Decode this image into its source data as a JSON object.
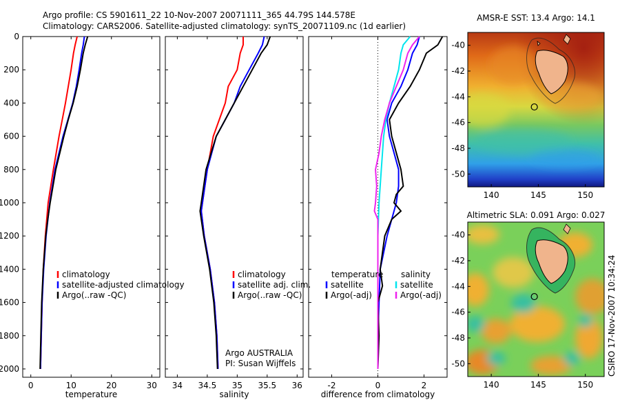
{
  "header": {
    "title_line1": "Argo profile: CS 5901611_22 10-Nov-2007 20071111_365 44.79S 144.578E",
    "title_line2": "Climatology: CARS2006. Satellite-adjusted climatology: synTS_20071109.nc (1d earlier)"
  },
  "credits": {
    "argo_line1": "Argo AUSTRALIA",
    "argo_line2": "PI: Susan Wijffels",
    "csiro_stamp": "CSIRO 17-Nov-2007 10:34:24"
  },
  "colors": {
    "climatology": "#ff0000",
    "satellite": "#0000ff",
    "argo": "#000000",
    "salinity_satellite": "#00e5ee",
    "salinity_argo": "#ee22ee"
  },
  "chart_data": [
    {
      "type": "line",
      "id": "temperature",
      "xlabel": "temperature",
      "ylabel": "",
      "xlim": [
        -2,
        32
      ],
      "ylim": [
        2050,
        0
      ],
      "xticks": [
        0,
        10,
        20,
        30
      ],
      "yticks": [
        0,
        200,
        400,
        600,
        800,
        1000,
        1200,
        1400,
        1600,
        1800,
        2000
      ],
      "legend": [
        "climatology",
        "satellite-adjusted climatology",
        "Argo(..raw -QC)"
      ],
      "series": [
        {
          "name": "climatology",
          "depth": [
            0,
            50,
            100,
            200,
            300,
            400,
            500,
            600,
            800,
            1000,
            1200,
            1400,
            1600,
            1800,
            2000
          ],
          "values": [
            11.5,
            11.0,
            10.6,
            10.0,
            9.3,
            8.6,
            7.8,
            7.0,
            5.6,
            4.3,
            3.6,
            3.1,
            2.8,
            2.6,
            2.4
          ]
        },
        {
          "name": "satellite-adjusted climatology",
          "depth": [
            0,
            50,
            100,
            200,
            300,
            400,
            500,
            600,
            800,
            1000,
            1200,
            1400,
            1600,
            1800,
            2000
          ],
          "values": [
            13.3,
            13.0,
            12.6,
            12.0,
            11.3,
            10.4,
            9.2,
            8.0,
            6.0,
            4.7,
            3.8,
            3.2,
            2.8,
            2.6,
            2.4
          ]
        },
        {
          "name": "Argo(..raw -QC)",
          "depth": [
            0,
            50,
            100,
            200,
            300,
            400,
            500,
            600,
            800,
            1000,
            1100,
            1200,
            1400,
            1600,
            1800,
            2000
          ],
          "values": [
            14.1,
            13.5,
            13.0,
            12.3,
            11.5,
            10.5,
            9.3,
            8.2,
            6.2,
            4.8,
            4.2,
            3.7,
            3.1,
            2.7,
            2.5,
            2.3
          ]
        }
      ]
    },
    {
      "type": "line",
      "id": "salinity",
      "xlabel": "salinity",
      "xlim": [
        33.8,
        36.1
      ],
      "ylim": [
        2050,
        0
      ],
      "xticks": [
        34,
        34.5,
        35,
        35.5,
        36
      ],
      "legend": [
        "climatology",
        "satellite adj. clim.",
        "Argo(..raw -QC)"
      ],
      "series": [
        {
          "name": "climatology",
          "depth": [
            0,
            50,
            100,
            200,
            300,
            400,
            500,
            600,
            800,
            1000,
            1050,
            1200,
            1400,
            1600,
            1800,
            2000
          ],
          "values": [
            35.1,
            35.1,
            35.05,
            35.0,
            34.85,
            34.8,
            34.7,
            34.6,
            34.5,
            34.42,
            34.4,
            34.45,
            34.55,
            34.62,
            34.66,
            34.68
          ]
        },
        {
          "name": "satellite adj. clim.",
          "depth": [
            0,
            50,
            100,
            200,
            300,
            400,
            500,
            600,
            800,
            1000,
            1050,
            1200,
            1400,
            1600,
            1800,
            2000
          ],
          "values": [
            35.45,
            35.42,
            35.35,
            35.2,
            35.05,
            34.95,
            34.8,
            34.65,
            34.5,
            34.42,
            34.4,
            34.45,
            34.55,
            34.62,
            34.66,
            34.68
          ]
        },
        {
          "name": "Argo(..raw -QC)",
          "depth": [
            0,
            50,
            100,
            200,
            300,
            400,
            500,
            600,
            800,
            1000,
            1050,
            1200,
            1400,
            1600,
            1800,
            2000
          ],
          "values": [
            35.55,
            35.5,
            35.4,
            35.25,
            35.1,
            34.95,
            34.8,
            34.65,
            34.48,
            34.4,
            34.38,
            34.44,
            34.54,
            34.61,
            34.65,
            34.67
          ]
        }
      ]
    },
    {
      "type": "line",
      "id": "difference",
      "xlabel": "difference from climatology",
      "xlim": [
        -3,
        3
      ],
      "ylim": [
        2050,
        0
      ],
      "xticks": [
        -2,
        0,
        2
      ],
      "legend_temperature": {
        "title": "temperature",
        "entries": [
          "satellite",
          "Argo(-adj)"
        ]
      },
      "legend_salinity": {
        "title": "salinity",
        "entries": [
          "satellite",
          "Argo(-adj)"
        ]
      },
      "series": [
        {
          "name": "temperature satellite",
          "depth": [
            0,
            50,
            100,
            200,
            300,
            400,
            500,
            600,
            700,
            800,
            900,
            1000,
            1100,
            1200,
            1400,
            1600,
            1800,
            2000
          ],
          "values": [
            1.8,
            1.7,
            1.5,
            1.3,
            1.0,
            0.6,
            0.4,
            0.5,
            0.7,
            0.9,
            0.9,
            0.8,
            0.6,
            0.4,
            0.1,
            0.05,
            0.0,
            0.0
          ]
        },
        {
          "name": "temperature Argo(-adj)",
          "depth": [
            0,
            50,
            100,
            200,
            300,
            400,
            500,
            600,
            700,
            800,
            900,
            950,
            1000,
            1050,
            1100,
            1200,
            1400,
            1500,
            1600,
            1800,
            2000
          ],
          "values": [
            2.8,
            2.6,
            2.1,
            1.8,
            1.4,
            0.9,
            0.5,
            0.6,
            0.8,
            1.0,
            1.1,
            0.8,
            0.7,
            1.0,
            0.6,
            0.3,
            0.1,
            0.2,
            0.0,
            0.05,
            0.0
          ]
        },
        {
          "name": "salinity satellite",
          "depth": [
            0,
            50,
            100,
            200,
            300,
            400,
            500,
            600,
            800,
            1000,
            1200,
            1400,
            1600,
            1800,
            2000
          ],
          "values": [
            1.4,
            1.1,
            1.0,
            0.9,
            0.7,
            0.5,
            0.35,
            0.25,
            0.15,
            0.05,
            0.0,
            0.0,
            0.0,
            0.0,
            0.0
          ]
        },
        {
          "name": "salinity Argo(-adj)",
          "depth": [
            0,
            50,
            100,
            200,
            300,
            400,
            500,
            600,
            700,
            800,
            900,
            1000,
            1050,
            1100,
            1200,
            1400,
            1600,
            1800,
            2000
          ],
          "values": [
            1.8,
            1.5,
            1.3,
            1.1,
            0.8,
            0.5,
            0.3,
            0.15,
            0.05,
            -0.1,
            -0.05,
            -0.1,
            -0.15,
            0.0,
            0.0,
            0.0,
            0.0,
            0.0,
            0.0
          ]
        }
      ]
    },
    {
      "type": "heatmap",
      "id": "sst-map",
      "title": "AMSR-E SST: 13.4 Argo: 14.1",
      "xlim": [
        137.5,
        152
      ],
      "ylim": [
        -51,
        -39
      ],
      "xticks": [
        140,
        145,
        150
      ],
      "yticks": [
        -40,
        -42,
        -44,
        -46,
        -48,
        -50
      ],
      "argo_position": {
        "lon": 144.578,
        "lat": -44.79
      }
    },
    {
      "type": "heatmap",
      "id": "sla-map",
      "title": "Altimetric SLA: 0.091 Argo: 0.027",
      "xlim": [
        137.5,
        152
      ],
      "ylim": [
        -51,
        -39
      ],
      "xticks": [
        140,
        145,
        150
      ],
      "yticks": [
        -40,
        -42,
        -44,
        -46,
        -48,
        -50
      ],
      "argo_position": {
        "lon": 144.578,
        "lat": -44.79
      }
    }
  ]
}
